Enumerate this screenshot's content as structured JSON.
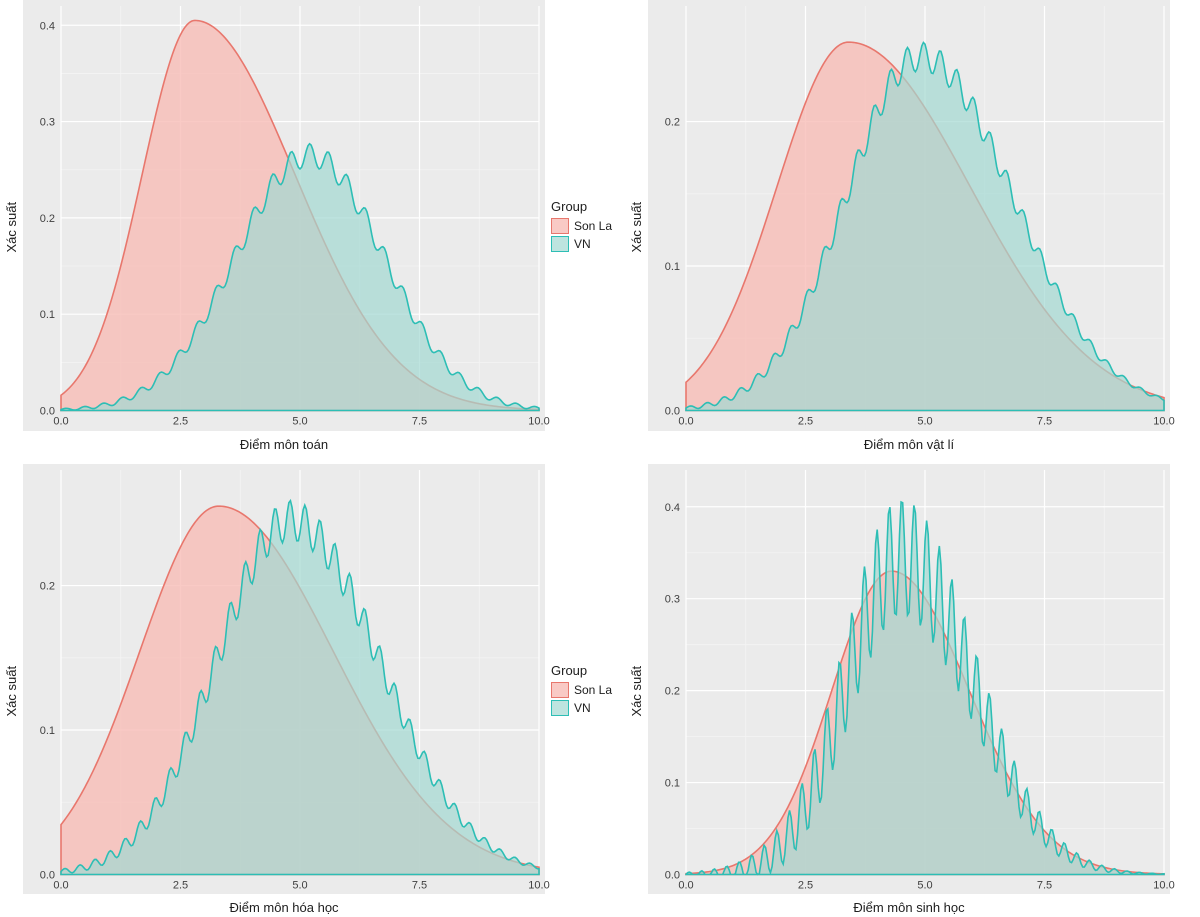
{
  "colors": {
    "sonla_fill": "#f8bdb7cc",
    "sonla_stroke": "#e8776d",
    "vn_fill": "#a3d8d1b3",
    "vn_stroke": "#2dbeb5",
    "panel_bg": "#ebebeb",
    "grid_major": "#ffffff",
    "grid_minor": "#f4f4f4",
    "tick_text": "#404040",
    "axis_label": "#202020"
  },
  "legend": {
    "title": "Group",
    "items": [
      {
        "label": "Son La",
        "fill": "#f8bdb7cc",
        "stroke": "#e8776d"
      },
      {
        "label": "VN",
        "fill": "#a3d8d1b3",
        "stroke": "#2dbeb5"
      }
    ]
  },
  "ylabel": "Xác suất",
  "fontsize_label": 13,
  "fontsize_tick": 11,
  "panels": [
    {
      "id": "toan",
      "xlabel": "Điểm môn toán",
      "xlim": [
        0,
        10
      ],
      "ylim": [
        0,
        0.42
      ],
      "xticks": [
        0.0,
        2.5,
        5.0,
        7.5,
        10.0
      ],
      "yticks": [
        0.0,
        0.1,
        0.2,
        0.3,
        0.4
      ],
      "series": {
        "sonla": {
          "peak_x": 2.8,
          "peak_y": 0.405,
          "sigma": 1.1,
          "skew": 0.9,
          "wiggle_amp": 0,
          "wiggle_freq": 0
        },
        "vn": {
          "peak_x": 5.2,
          "peak_y": 0.265,
          "sigma": 1.55,
          "skew": 0.0,
          "wiggle_amp": 0.012,
          "wiggle_freq": 16
        }
      }
    },
    {
      "id": "vatli",
      "xlabel": "Điểm môn vật lí",
      "xlim": [
        0,
        10
      ],
      "ylim": [
        0,
        0.28
      ],
      "xticks": [
        0.0,
        2.5,
        5.0,
        7.5,
        10.0
      ],
      "yticks": [
        0.0,
        0.1,
        0.2
      ],
      "series": {
        "sonla": {
          "peak_x": 3.4,
          "peak_y": 0.255,
          "sigma": 1.5,
          "skew": 0.7,
          "wiggle_amp": 0,
          "wiggle_freq": 0
        },
        "vn": {
          "peak_x": 4.9,
          "peak_y": 0.245,
          "sigma": 1.55,
          "skew": 0.25,
          "wiggle_amp": 0.01,
          "wiggle_freq": 18
        }
      }
    },
    {
      "id": "hoahoc",
      "xlabel": "Điểm môn hóa học",
      "xlim": [
        0,
        10
      ],
      "ylim": [
        0,
        0.28
      ],
      "xticks": [
        0.0,
        2.5,
        5.0,
        7.5,
        10.0
      ],
      "yticks": [
        0.0,
        0.1,
        0.2
      ],
      "series": {
        "sonla": {
          "peak_x": 3.3,
          "peak_y": 0.255,
          "sigma": 1.65,
          "skew": 0.45,
          "wiggle_amp": 0,
          "wiggle_freq": 0
        },
        "vn": {
          "peak_x": 4.8,
          "peak_y": 0.245,
          "sigma": 1.55,
          "skew": 0.2,
          "wiggle_amp": 0.014,
          "wiggle_freq": 20
        }
      }
    },
    {
      "id": "sinhhoc",
      "xlabel": "Điểm môn sinh học",
      "xlim": [
        0,
        10
      ],
      "ylim": [
        0,
        0.44
      ],
      "xticks": [
        0.0,
        2.5,
        5.0,
        7.5,
        10.0
      ],
      "yticks": [
        0.0,
        0.1,
        0.2,
        0.3,
        0.4
      ],
      "series": {
        "sonla": {
          "peak_x": 4.3,
          "peak_y": 0.33,
          "sigma": 1.25,
          "skew": 0.3,
          "wiggle_amp": 0,
          "wiggle_freq": 0
        },
        "vn": {
          "peak_x": 4.5,
          "peak_y": 0.345,
          "sigma": 1.15,
          "skew": 0.3,
          "wiggle_amp": 0.065,
          "wiggle_freq": 24
        }
      }
    }
  ]
}
